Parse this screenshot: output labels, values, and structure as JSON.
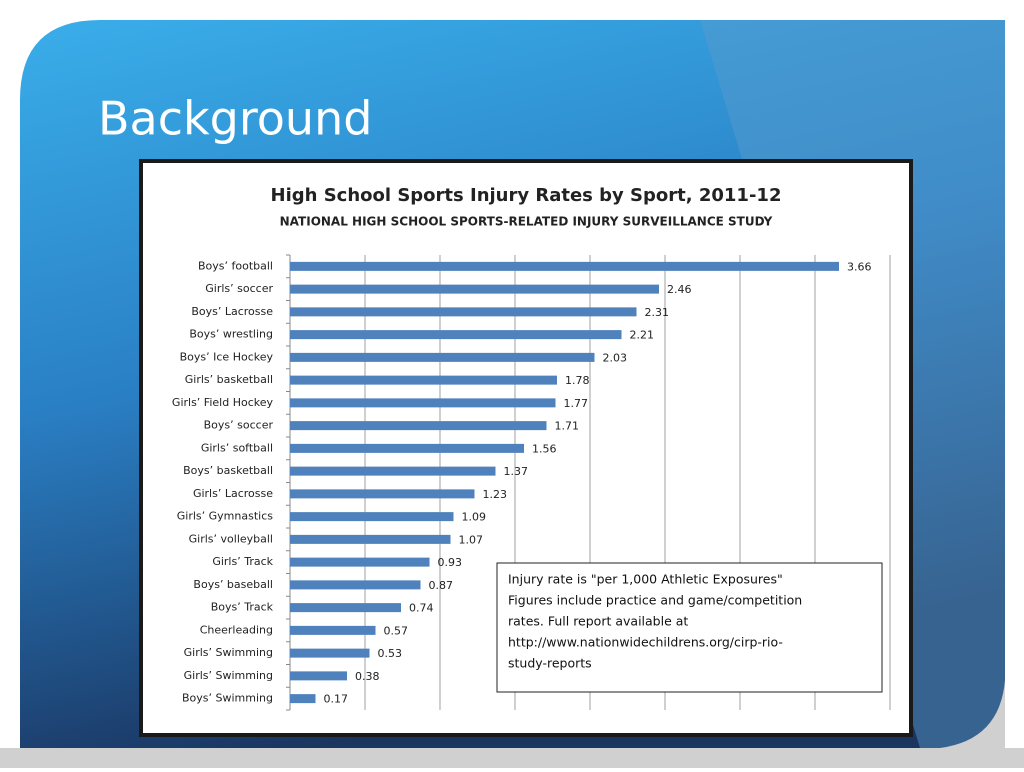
{
  "slide_title": "Background",
  "chart_data": {
    "type": "bar",
    "orientation": "horizontal",
    "title": "High School Sports Injury Rates by Sport, 2011-12",
    "subtitle": "NATIONAL HIGH SCHOOL SPORTS-RELATED INJURY SURVEILLANCE STUDY",
    "categories": [
      "Boys’ football",
      "Girls’ soccer",
      "Boys’ Lacrosse",
      "Boys’ wrestling",
      "Boys’ Ice Hockey",
      "Girls’ basketball",
      "Girls’ Field Hockey",
      "Boys’ soccer",
      "Girls’ softball",
      "Boys’ basketball",
      "Girls’ Lacrosse",
      "Girls’ Gymnastics",
      "Girls’ volleyball",
      "Girls’ Track",
      "Boys’ baseball",
      "Boys’ Track",
      "Cheerleading",
      "Girls’ Swimming",
      "Girls’ Swimming",
      "Boys’ Swimming"
    ],
    "values": [
      3.66,
      2.46,
      2.31,
      2.21,
      2.03,
      1.78,
      1.77,
      1.71,
      1.56,
      1.37,
      1.23,
      1.09,
      1.07,
      0.93,
      0.87,
      0.74,
      0.57,
      0.53,
      0.38,
      0.17
    ],
    "color": "#4f81bd",
    "xlim": [
      0,
      4
    ],
    "xticks": [
      0,
      0.5,
      1,
      1.5,
      2,
      2.5,
      3,
      3.5,
      4
    ],
    "grid": true,
    "note": [
      "Injury rate is \"per 1,000 Athletic Exposures\"",
      "Figures include practice and game/competition",
      "rates.  Full report available at",
      "http://www.nationwidechildrens.org/cirp-rio-",
      "study-reports"
    ]
  }
}
